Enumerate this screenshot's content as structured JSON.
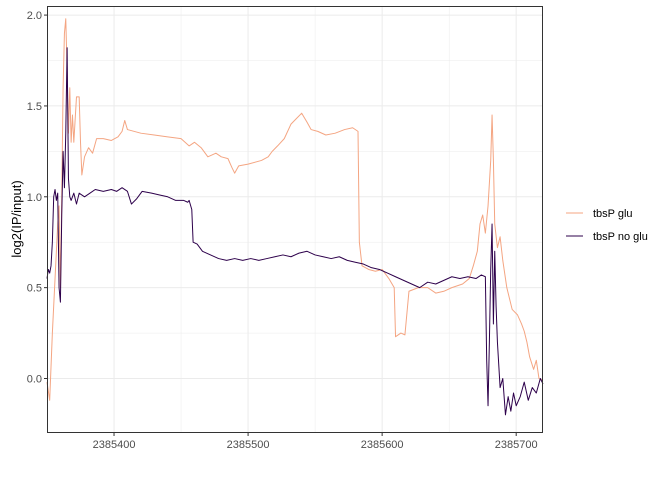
{
  "chart_data": {
    "type": "line",
    "title": "",
    "xlabel": "",
    "ylabel": "log2(IP/input)",
    "xlim": [
      2385350,
      2385720
    ],
    "ylim": [
      -0.3,
      2.05
    ],
    "xticks": [
      2385400,
      2385500,
      2385600,
      2385700
    ],
    "yticks": [
      0.0,
      0.5,
      1.0,
      1.5,
      2.0
    ],
    "ytick_labels": [
      "0.0",
      "0.5",
      "1.0",
      "1.5",
      "2.0"
    ],
    "grid": true,
    "legend_position": "right",
    "series": [
      {
        "name": "tbsP glu",
        "color": "#f4a582",
        "points": [
          [
            2385350,
            -0.02
          ],
          [
            2385352,
            -0.12
          ],
          [
            2385354,
            0.25
          ],
          [
            2385356,
            0.55
          ],
          [
            2385358,
            0.85
          ],
          [
            2385359,
            0.95
          ],
          [
            2385360,
            0.5
          ],
          [
            2385361,
            1.0
          ],
          [
            2385362,
            1.6
          ],
          [
            2385363,
            1.9
          ],
          [
            2385364,
            1.98
          ],
          [
            2385365,
            1.7
          ],
          [
            2385366,
            1.35
          ],
          [
            2385367,
            1.6
          ],
          [
            2385368,
            1.3
          ],
          [
            2385369,
            1.45
          ],
          [
            2385370,
            1.3
          ],
          [
            2385372,
            1.55
          ],
          [
            2385374,
            1.55
          ],
          [
            2385375,
            1.3
          ],
          [
            2385376,
            1.12
          ],
          [
            2385378,
            1.22
          ],
          [
            2385381,
            1.27
          ],
          [
            2385384,
            1.24
          ],
          [
            2385387,
            1.32
          ],
          [
            2385392,
            1.32
          ],
          [
            2385398,
            1.31
          ],
          [
            2385403,
            1.33
          ],
          [
            2385406,
            1.36
          ],
          [
            2385408,
            1.42
          ],
          [
            2385410,
            1.37
          ],
          [
            2385420,
            1.35
          ],
          [
            2385430,
            1.34
          ],
          [
            2385440,
            1.33
          ],
          [
            2385450,
            1.32
          ],
          [
            2385456,
            1.28
          ],
          [
            2385460,
            1.3
          ],
          [
            2385465,
            1.27
          ],
          [
            2385470,
            1.22
          ],
          [
            2385476,
            1.24
          ],
          [
            2385480,
            1.22
          ],
          [
            2385485,
            1.21
          ],
          [
            2385488,
            1.16
          ],
          [
            2385490,
            1.13
          ],
          [
            2385493,
            1.17
          ],
          [
            2385500,
            1.18
          ],
          [
            2385510,
            1.2
          ],
          [
            2385515,
            1.22
          ],
          [
            2385518,
            1.25
          ],
          [
            2385522,
            1.28
          ],
          [
            2385527,
            1.32
          ],
          [
            2385532,
            1.4
          ],
          [
            2385536,
            1.43
          ],
          [
            2385540,
            1.46
          ],
          [
            2385544,
            1.41
          ],
          [
            2385547,
            1.37
          ],
          [
            2385552,
            1.36
          ],
          [
            2385558,
            1.34
          ],
          [
            2385565,
            1.35
          ],
          [
            2385572,
            1.37
          ],
          [
            2385578,
            1.38
          ],
          [
            2385582,
            1.36
          ],
          [
            2385583,
            0.75
          ],
          [
            2385585,
            0.62
          ],
          [
            2385590,
            0.6
          ],
          [
            2385595,
            0.59
          ],
          [
            2385600,
            0.6
          ],
          [
            2385605,
            0.55
          ],
          [
            2385609,
            0.5
          ],
          [
            2385610,
            0.23
          ],
          [
            2385614,
            0.25
          ],
          [
            2385617,
            0.24
          ],
          [
            2385620,
            0.48
          ],
          [
            2385627,
            0.5
          ],
          [
            2385634,
            0.5
          ],
          [
            2385640,
            0.47
          ],
          [
            2385646,
            0.48
          ],
          [
            2385652,
            0.5
          ],
          [
            2385660,
            0.52
          ],
          [
            2385665,
            0.55
          ],
          [
            2385668,
            0.62
          ],
          [
            2385671,
            0.7
          ],
          [
            2385673,
            0.85
          ],
          [
            2385675,
            0.9
          ],
          [
            2385677,
            0.8
          ],
          [
            2385679,
            0.95
          ],
          [
            2385681,
            1.2
          ],
          [
            2385682,
            1.45
          ],
          [
            2385683,
            1.2
          ],
          [
            2385684,
            0.85
          ],
          [
            2385686,
            0.72
          ],
          [
            2385688,
            0.78
          ],
          [
            2385690,
            0.65
          ],
          [
            2385693,
            0.5
          ],
          [
            2385697,
            0.38
          ],
          [
            2385701,
            0.35
          ],
          [
            2385704,
            0.3
          ],
          [
            2385706,
            0.26
          ],
          [
            2385708,
            0.2
          ],
          [
            2385710,
            0.12
          ],
          [
            2385713,
            0.05
          ],
          [
            2385715,
            0.1
          ],
          [
            2385717,
            0.0
          ],
          [
            2385720,
            -0.01
          ]
        ]
      },
      {
        "name": "tbsP no glu",
        "color": "#2d004b",
        "points": [
          [
            2385350,
            0.55
          ],
          [
            2385351,
            0.6
          ],
          [
            2385352,
            0.58
          ],
          [
            2385353,
            0.62
          ],
          [
            2385354,
            0.75
          ],
          [
            2385355,
            1.0
          ],
          [
            2385356,
            1.04
          ],
          [
            2385357,
            0.98
          ],
          [
            2385358,
            1.02
          ],
          [
            2385359,
            0.5
          ],
          [
            2385360,
            0.42
          ],
          [
            2385361,
            0.9
          ],
          [
            2385362,
            1.25
          ],
          [
            2385363,
            1.05
          ],
          [
            2385364,
            1.35
          ],
          [
            2385365,
            1.82
          ],
          [
            2385366,
            1.1
          ],
          [
            2385367,
            1.0
          ],
          [
            2385368,
            0.98
          ],
          [
            2385370,
            1.02
          ],
          [
            2385372,
            0.96
          ],
          [
            2385374,
            1.02
          ],
          [
            2385378,
            1.0
          ],
          [
            2385382,
            1.02
          ],
          [
            2385386,
            1.04
          ],
          [
            2385392,
            1.03
          ],
          [
            2385398,
            1.04
          ],
          [
            2385402,
            1.03
          ],
          [
            2385406,
            1.05
          ],
          [
            2385410,
            1.03
          ],
          [
            2385413,
            0.96
          ],
          [
            2385417,
            0.99
          ],
          [
            2385421,
            1.03
          ],
          [
            2385428,
            1.02
          ],
          [
            2385434,
            1.01
          ],
          [
            2385440,
            1.0
          ],
          [
            2385446,
            0.98
          ],
          [
            2385452,
            0.98
          ],
          [
            2385455,
            0.97
          ],
          [
            2385456,
            0.98
          ],
          [
            2385458,
            0.93
          ],
          [
            2385459,
            0.75
          ],
          [
            2385462,
            0.74
          ],
          [
            2385466,
            0.7
          ],
          [
            2385472,
            0.68
          ],
          [
            2385478,
            0.66
          ],
          [
            2385484,
            0.65
          ],
          [
            2385490,
            0.66
          ],
          [
            2385496,
            0.65
          ],
          [
            2385502,
            0.66
          ],
          [
            2385508,
            0.65
          ],
          [
            2385514,
            0.66
          ],
          [
            2385520,
            0.67
          ],
          [
            2385526,
            0.68
          ],
          [
            2385532,
            0.67
          ],
          [
            2385538,
            0.69
          ],
          [
            2385544,
            0.7
          ],
          [
            2385550,
            0.68
          ],
          [
            2385556,
            0.67
          ],
          [
            2385562,
            0.66
          ],
          [
            2385568,
            0.67
          ],
          [
            2385574,
            0.65
          ],
          [
            2385580,
            0.64
          ],
          [
            2385586,
            0.63
          ],
          [
            2385592,
            0.61
          ],
          [
            2385598,
            0.6
          ],
          [
            2385604,
            0.58
          ],
          [
            2385610,
            0.56
          ],
          [
            2385616,
            0.54
          ],
          [
            2385622,
            0.52
          ],
          [
            2385628,
            0.5
          ],
          [
            2385634,
            0.53
          ],
          [
            2385640,
            0.52
          ],
          [
            2385646,
            0.54
          ],
          [
            2385652,
            0.56
          ],
          [
            2385658,
            0.55
          ],
          [
            2385664,
            0.56
          ],
          [
            2385670,
            0.55
          ],
          [
            2385674,
            0.57
          ],
          [
            2385677,
            0.56
          ],
          [
            2385678,
            0.1
          ],
          [
            2385679,
            -0.15
          ],
          [
            2385680,
            0.2
          ],
          [
            2385681,
            0.6
          ],
          [
            2385682,
            0.85
          ],
          [
            2385683,
            0.3
          ],
          [
            2385684,
            0.7
          ],
          [
            2385685,
            0.4
          ],
          [
            2385686,
            0.2
          ],
          [
            2385688,
            -0.05
          ],
          [
            2385690,
            0.0
          ],
          [
            2385692,
            -0.2
          ],
          [
            2385694,
            -0.1
          ],
          [
            2385696,
            -0.18
          ],
          [
            2385698,
            -0.08
          ],
          [
            2385700,
            -0.15
          ],
          [
            2385703,
            -0.1
          ],
          [
            2385706,
            -0.02
          ],
          [
            2385709,
            -0.12
          ],
          [
            2385712,
            -0.05
          ],
          [
            2385715,
            -0.08
          ],
          [
            2385718,
            0.0
          ],
          [
            2385720,
            -0.03
          ]
        ]
      }
    ]
  }
}
